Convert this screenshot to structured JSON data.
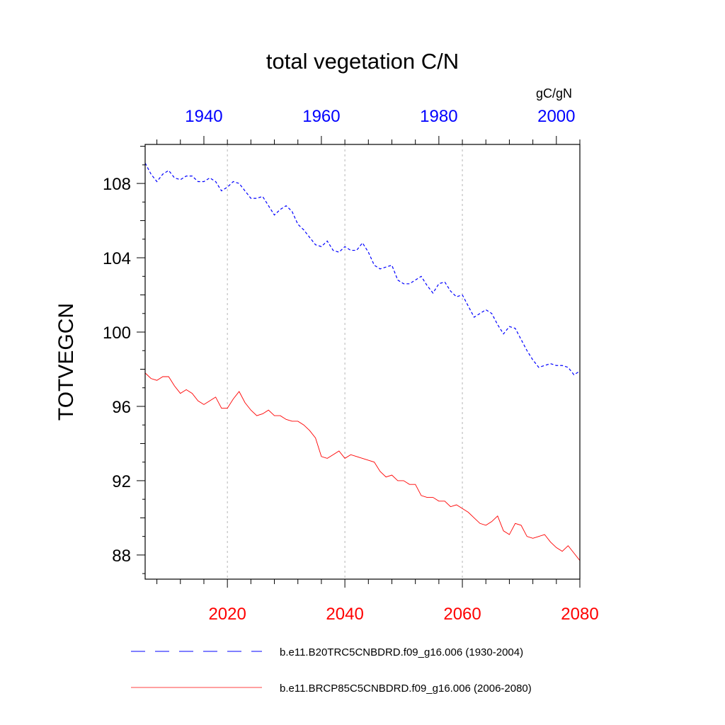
{
  "chart_data": {
    "type": "line",
    "title": "total vegetation C/N",
    "ylabel": "TOTVEGCN",
    "units": "gC/gN",
    "ylim": [
      86.7,
      110.1
    ],
    "yticks": [
      88,
      92,
      96,
      100,
      104,
      108
    ],
    "grid_x": true,
    "legend_placement": "bottom",
    "colors": {
      "top_axis": "#0000ff",
      "bottom_axis": "#ff0000"
    },
    "axes": {
      "bottom": {
        "range": [
          2006,
          2080
        ],
        "ticks": [
          2020,
          2040,
          2060,
          2080
        ]
      },
      "top": {
        "range": [
          1930,
          2004
        ],
        "ticks": [
          1940,
          1960,
          1980,
          2000
        ]
      }
    },
    "series": [
      {
        "name": "b.e11.B20TRC5CNBDRD.f09_g16.006 (1930-2004)",
        "axis": "top",
        "color": "#0000ff",
        "dash": "dashed",
        "x_start": 1930,
        "values": [
          109.1,
          108.5,
          108.1,
          108.5,
          108.7,
          108.3,
          108.2,
          108.4,
          108.4,
          108.1,
          108.1,
          108.3,
          108.1,
          107.6,
          107.8,
          108.1,
          108.0,
          107.6,
          107.2,
          107.2,
          107.3,
          106.8,
          106.3,
          106.6,
          106.8,
          106.5,
          105.8,
          105.5,
          105.1,
          104.7,
          104.6,
          104.9,
          104.4,
          104.3,
          104.6,
          104.4,
          104.4,
          104.8,
          104.3,
          103.6,
          103.4,
          103.5,
          103.6,
          102.8,
          102.6,
          102.6,
          102.8,
          103.0,
          102.5,
          102.1,
          102.6,
          102.7,
          102.2,
          101.9,
          102.0,
          101.4,
          100.8,
          101.0,
          101.2,
          101.0,
          100.4,
          99.9,
          100.3,
          100.2,
          99.6,
          99.0,
          98.5,
          98.1,
          98.2,
          98.3,
          98.2,
          98.2,
          98.1,
          97.7,
          97.9
        ]
      },
      {
        "name": "b.e11.BRCP85C5CNBDRD.f09_g16.006 (2006-2080)",
        "axis": "bottom",
        "color": "#ff0000",
        "dash": "solid",
        "x_start": 2006,
        "values": [
          97.8,
          97.5,
          97.4,
          97.6,
          97.6,
          97.1,
          96.7,
          96.9,
          96.7,
          96.3,
          96.1,
          96.3,
          96.5,
          95.9,
          95.9,
          96.4,
          96.8,
          96.2,
          95.8,
          95.5,
          95.6,
          95.8,
          95.5,
          95.5,
          95.3,
          95.2,
          95.2,
          95.0,
          94.7,
          94.3,
          93.3,
          93.2,
          93.4,
          93.6,
          93.2,
          93.4,
          93.3,
          93.2,
          93.1,
          93.0,
          92.5,
          92.2,
          92.3,
          92.0,
          92.0,
          91.8,
          91.8,
          91.2,
          91.1,
          91.1,
          90.9,
          90.9,
          90.6,
          90.7,
          90.5,
          90.3,
          90.0,
          89.7,
          89.6,
          89.8,
          90.1,
          89.3,
          89.1,
          89.7,
          89.6,
          89.0,
          88.9,
          89.0,
          89.1,
          88.7,
          88.4,
          88.2,
          88.5,
          88.1,
          87.7
        ]
      }
    ]
  }
}
